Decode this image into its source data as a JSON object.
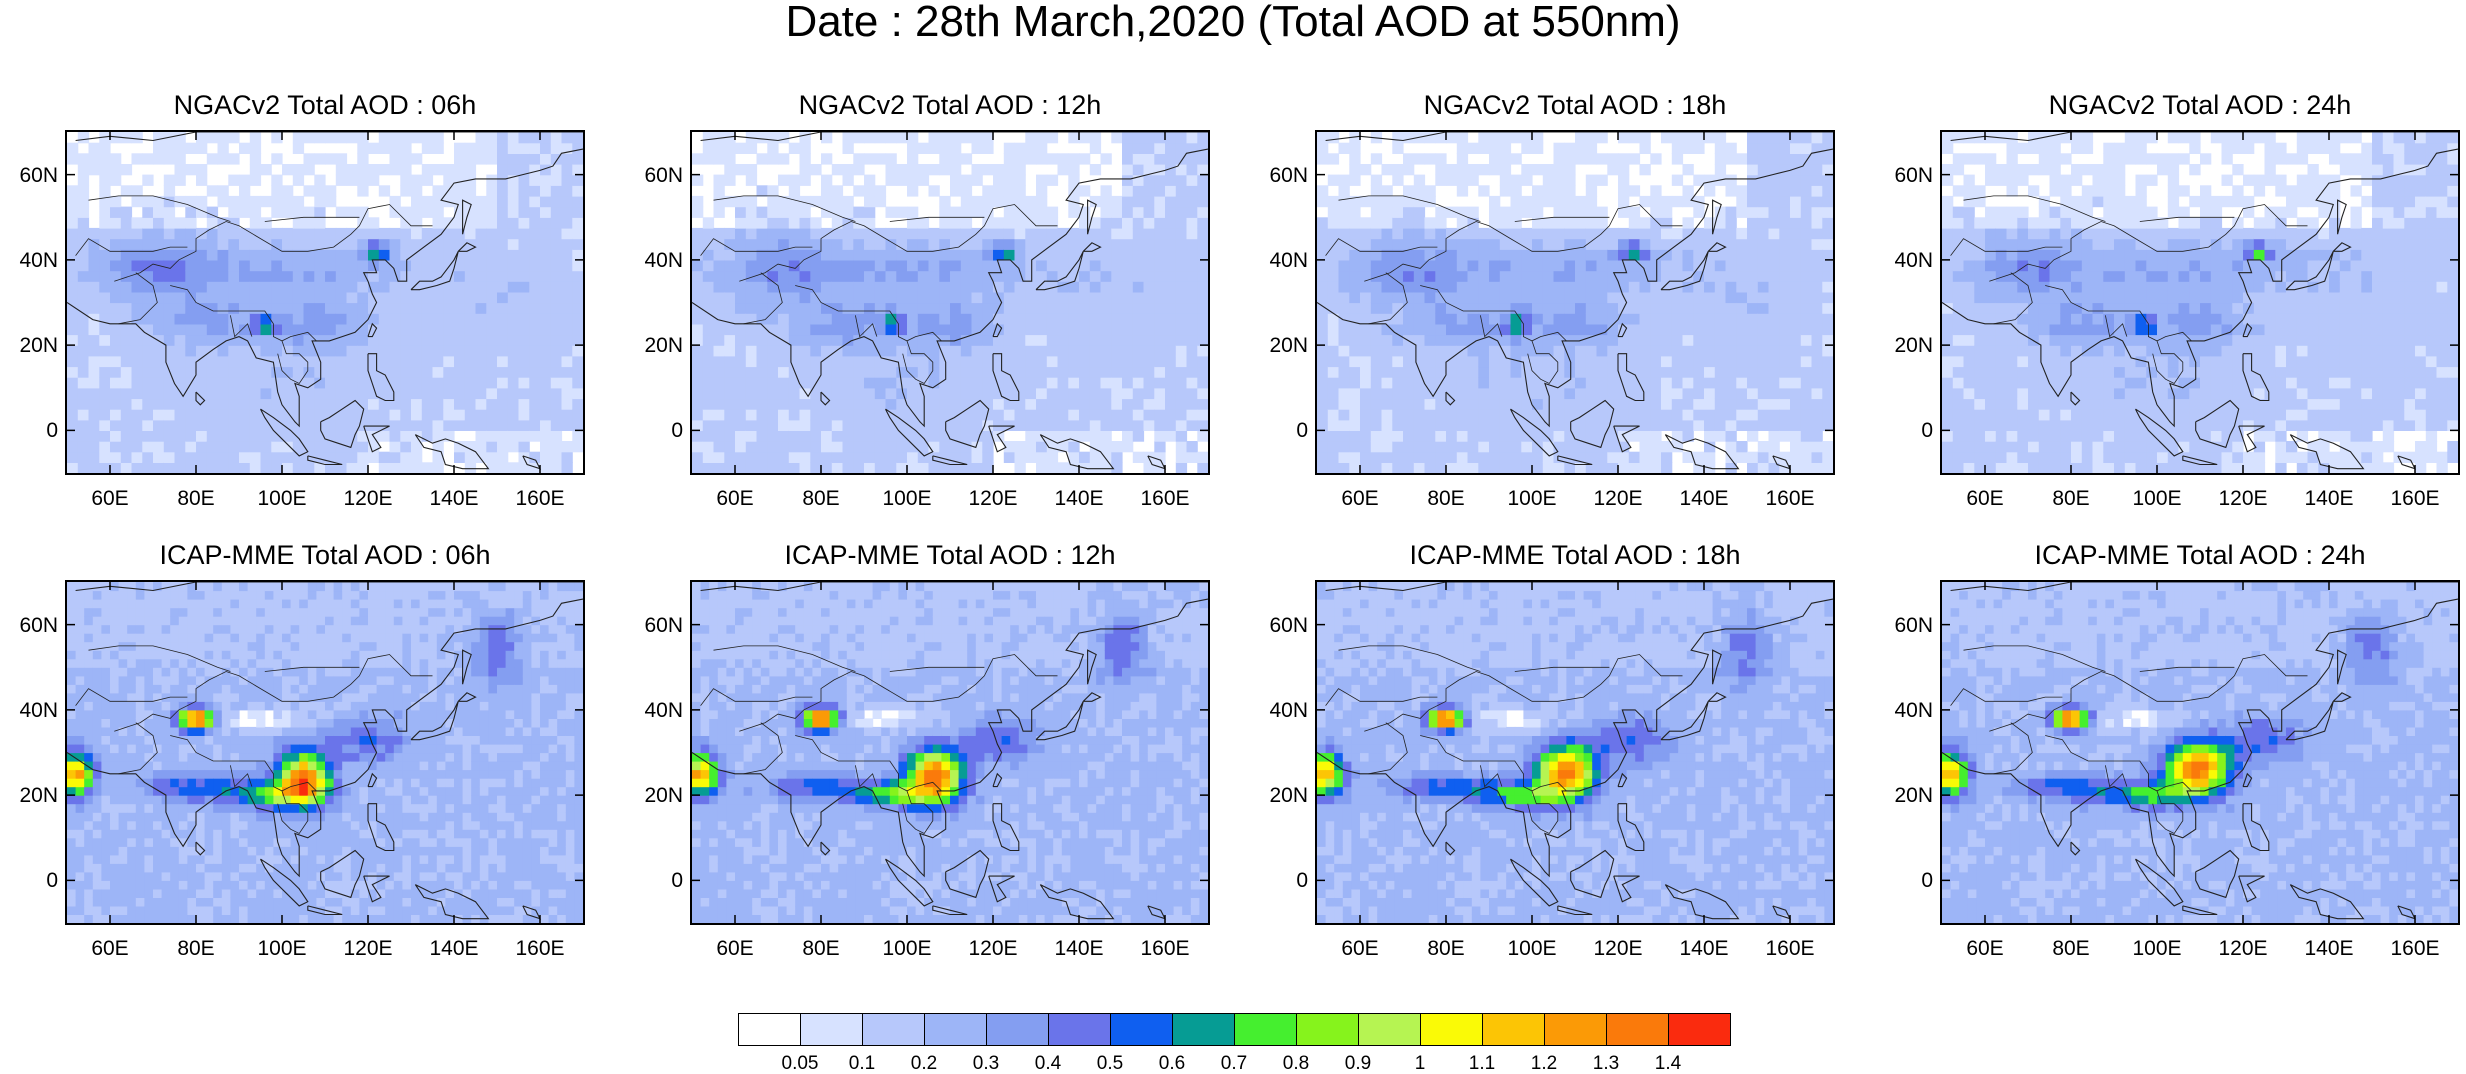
{
  "title": "Date : 28th March,2020 (Total AOD at 550nm)",
  "lat_labels": [
    "60N",
    "40N",
    "20N",
    "0"
  ],
  "lon_labels": [
    "60E",
    "80E",
    "100E",
    "120E",
    "140E",
    "160E"
  ],
  "panels": [
    {
      "title": "NGACv2 Total AOD : 06h",
      "model": "NGACv2",
      "hour": "06h",
      "row": 0,
      "col": 0
    },
    {
      "title": "NGACv2 Total AOD : 12h",
      "model": "NGACv2",
      "hour": "12h",
      "row": 0,
      "col": 1
    },
    {
      "title": "NGACv2 Total AOD : 18h",
      "model": "NGACv2",
      "hour": "18h",
      "row": 0,
      "col": 2
    },
    {
      "title": "NGACv2 Total AOD : 24h",
      "model": "NGACv2",
      "hour": "24h",
      "row": 0,
      "col": 3
    },
    {
      "title": "ICAP-MME Total AOD : 06h",
      "model": "ICAP-MME",
      "hour": "06h",
      "row": 1,
      "col": 0
    },
    {
      "title": "ICAP-MME Total AOD : 12h",
      "model": "ICAP-MME",
      "hour": "12h",
      "row": 1,
      "col": 1
    },
    {
      "title": "ICAP-MME Total AOD : 18h",
      "model": "ICAP-MME",
      "hour": "18h",
      "row": 1,
      "col": 2
    },
    {
      "title": "ICAP-MME Total AOD : 24h",
      "model": "ICAP-MME",
      "hour": "24h",
      "row": 1,
      "col": 3
    }
  ],
  "map_extent": {
    "lon": [
      50,
      170
    ],
    "lat": [
      -10,
      70
    ]
  },
  "colorbar": {
    "labels": [
      "0.05",
      "0.1",
      "0.2",
      "0.3",
      "0.4",
      "0.5",
      "0.6",
      "0.7",
      "0.8",
      "0.9",
      "1",
      "1.1",
      "1.2",
      "1.3",
      "1.4"
    ],
    "colors": [
      "#ffffff",
      "#d7e2ff",
      "#b7c8fb",
      "#9db5f7",
      "#849ef1",
      "#6a74ea",
      "#0f5ff0",
      "#069c94",
      "#45ef2f",
      "#86f31c",
      "#b6f452",
      "#fafa06",
      "#fcc505",
      "#fb9a06",
      "#fa7a0b",
      "#fa2b0e"
    ]
  }
}
